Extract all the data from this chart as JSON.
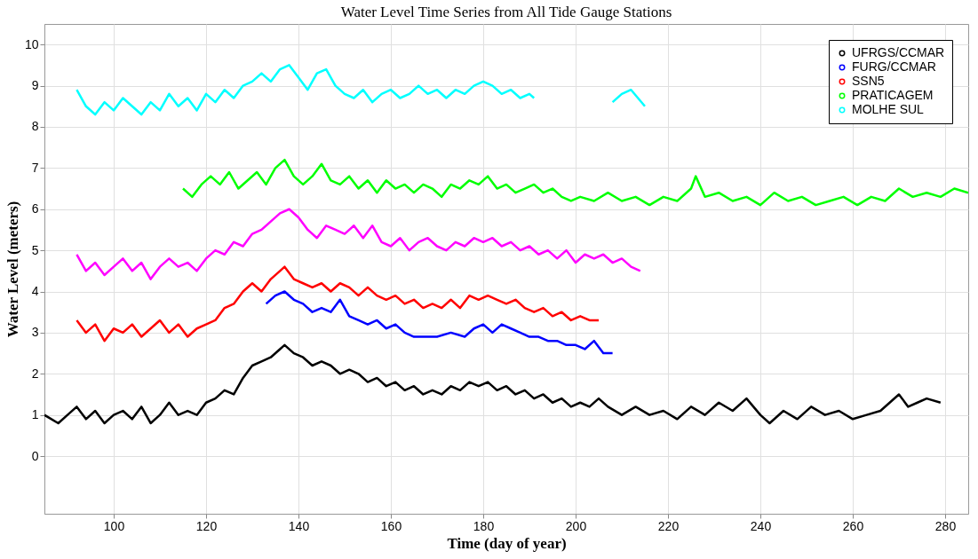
{
  "chart_data": {
    "type": "line",
    "title": "Water Level Time Series from All Tide Gauge Stations",
    "xlabel": "Time (day of year)",
    "ylabel": "Water Level (meters)",
    "xlim": [
      85,
      285
    ],
    "xticks": [
      100,
      120,
      140,
      160,
      180,
      200,
      220,
      240,
      260,
      280
    ],
    "ylim": [
      -1.4,
      10.5
    ],
    "yticks": [
      0,
      1,
      2,
      3,
      4,
      5,
      6,
      7,
      8,
      9,
      10
    ],
    "grid": true,
    "legend": "top right",
    "line_style": "solid",
    "series": [
      {
        "name": "UFRGS/CCMAR",
        "color": "#000000",
        "x": [
          85,
          88,
          90,
          92,
          94,
          96,
          98,
          100,
          102,
          104,
          106,
          108,
          110,
          112,
          114,
          116,
          118,
          120,
          122,
          124,
          126,
          128,
          130,
          132,
          134,
          136,
          137,
          139,
          141,
          143,
          145,
          147,
          149,
          151,
          153,
          155,
          157,
          159,
          161,
          163,
          165,
          167,
          169,
          171,
          173,
          175,
          177,
          179,
          181,
          183,
          185,
          187,
          189,
          191,
          193,
          195,
          197,
          199,
          201,
          203,
          205,
          207,
          210,
          213,
          216,
          219,
          222,
          225,
          228,
          231,
          234,
          237,
          240,
          242,
          245,
          248,
          251,
          254,
          257,
          260,
          263,
          266,
          268,
          270,
          272,
          274,
          276,
          279
        ],
        "values": [
          1.0,
          0.8,
          1.0,
          1.2,
          0.9,
          1.1,
          0.8,
          1.0,
          1.1,
          0.9,
          1.2,
          0.8,
          1.0,
          1.3,
          1.0,
          1.1,
          1.0,
          1.3,
          1.4,
          1.6,
          1.5,
          1.9,
          2.2,
          2.3,
          2.4,
          2.6,
          2.7,
          2.5,
          2.4,
          2.2,
          2.3,
          2.2,
          2.0,
          2.1,
          2.0,
          1.8,
          1.9,
          1.7,
          1.8,
          1.6,
          1.7,
          1.5,
          1.6,
          1.5,
          1.7,
          1.6,
          1.8,
          1.7,
          1.8,
          1.6,
          1.7,
          1.5,
          1.6,
          1.4,
          1.5,
          1.3,
          1.4,
          1.2,
          1.3,
          1.2,
          1.4,
          1.2,
          1.0,
          1.2,
          1.0,
          1.1,
          0.9,
          1.2,
          1.0,
          1.3,
          1.1,
          1.4,
          1.0,
          0.8,
          1.1,
          0.9,
          1.2,
          1.0,
          1.1,
          0.9,
          1.0,
          1.1,
          1.3,
          1.5,
          1.2,
          1.3,
          1.4,
          1.3
        ]
      },
      {
        "name": "FURG/CCMAR",
        "color": "#0000ff",
        "x": [
          133,
          135,
          137,
          139,
          141,
          143,
          145,
          147,
          149,
          151,
          153,
          155,
          157,
          159,
          161,
          163,
          165,
          167,
          170,
          173,
          176,
          178,
          180,
          182,
          184,
          186,
          188,
          190,
          192,
          194,
          196,
          198,
          200,
          202,
          204,
          206,
          208
        ],
        "values": [
          3.7,
          3.9,
          4.0,
          3.8,
          3.7,
          3.5,
          3.6,
          3.5,
          3.8,
          3.4,
          3.3,
          3.2,
          3.3,
          3.1,
          3.2,
          3.0,
          2.9,
          2.9,
          2.9,
          3.0,
          2.9,
          3.1,
          3.2,
          3.0,
          3.2,
          3.1,
          3.0,
          2.9,
          2.9,
          2.8,
          2.8,
          2.7,
          2.7,
          2.6,
          2.8,
          2.5,
          2.5
        ]
      },
      {
        "name": "SSN5",
        "color": "#ff0000",
        "x": [
          92,
          94,
          96,
          98,
          100,
          102,
          104,
          106,
          108,
          110,
          112,
          114,
          116,
          118,
          120,
          122,
          124,
          126,
          128,
          130,
          132,
          134,
          136,
          137,
          139,
          141,
          143,
          145,
          147,
          149,
          151,
          153,
          155,
          157,
          159,
          161,
          163,
          165,
          167,
          169,
          171,
          173,
          175,
          177,
          179,
          181,
          183,
          185,
          187,
          189,
          191,
          193,
          195,
          197,
          199,
          201,
          203,
          205
        ],
        "values": [
          3.3,
          3.0,
          3.2,
          2.8,
          3.1,
          3.0,
          3.2,
          2.9,
          3.1,
          3.3,
          3.0,
          3.2,
          2.9,
          3.1,
          3.2,
          3.3,
          3.6,
          3.7,
          4.0,
          4.2,
          4.0,
          4.3,
          4.5,
          4.6,
          4.3,
          4.2,
          4.1,
          4.2,
          4.0,
          4.2,
          4.1,
          3.9,
          4.1,
          3.9,
          3.8,
          3.9,
          3.7,
          3.8,
          3.6,
          3.7,
          3.6,
          3.8,
          3.6,
          3.9,
          3.8,
          3.9,
          3.8,
          3.7,
          3.8,
          3.6,
          3.5,
          3.6,
          3.4,
          3.5,
          3.3,
          3.4,
          3.3,
          3.3
        ]
      },
      {
        "color": "#ff00ff",
        "x": [
          92,
          94,
          96,
          98,
          100,
          102,
          104,
          106,
          108,
          110,
          112,
          114,
          116,
          118,
          120,
          122,
          124,
          126,
          128,
          130,
          132,
          134,
          136,
          138,
          140,
          142,
          144,
          146,
          148,
          150,
          152,
          154,
          156,
          158,
          160,
          162,
          164,
          166,
          168,
          170,
          172,
          174,
          176,
          178,
          180,
          182,
          184,
          186,
          188,
          190,
          192,
          194,
          196,
          198,
          200,
          202,
          204,
          206,
          208,
          210,
          212,
          214
        ],
        "values": [
          4.9,
          4.5,
          4.7,
          4.4,
          4.6,
          4.8,
          4.5,
          4.7,
          4.3,
          4.6,
          4.8,
          4.6,
          4.7,
          4.5,
          4.8,
          5.0,
          4.9,
          5.2,
          5.1,
          5.4,
          5.5,
          5.7,
          5.9,
          6.0,
          5.8,
          5.5,
          5.3,
          5.6,
          5.5,
          5.4,
          5.6,
          5.3,
          5.6,
          5.2,
          5.1,
          5.3,
          5.0,
          5.2,
          5.3,
          5.1,
          5.0,
          5.2,
          5.1,
          5.3,
          5.2,
          5.3,
          5.1,
          5.2,
          5.0,
          5.1,
          4.9,
          5.0,
          4.8,
          5.0,
          4.7,
          4.9,
          4.8,
          4.9,
          4.7,
          4.8,
          4.6,
          4.5
        ]
      },
      {
        "name": "PRATICAGEM",
        "color": "#00ff00",
        "x": [
          115,
          117,
          119,
          121,
          123,
          125,
          127,
          129,
          131,
          133,
          135,
          137,
          139,
          141,
          143,
          145,
          147,
          149,
          151,
          153,
          155,
          157,
          159,
          161,
          163,
          165,
          167,
          169,
          171,
          173,
          175,
          177,
          179,
          181,
          183,
          185,
          187,
          189,
          191,
          193,
          195,
          197,
          199,
          201,
          204,
          207,
          210,
          213,
          216,
          219,
          222,
          225,
          226,
          228,
          231,
          234,
          237,
          240,
          243,
          246,
          249,
          252,
          255,
          258,
          261,
          264,
          267,
          270,
          273,
          276,
          279,
          282,
          285
        ],
        "values": [
          6.5,
          6.3,
          6.6,
          6.8,
          6.6,
          6.9,
          6.5,
          6.7,
          6.9,
          6.6,
          7.0,
          7.2,
          6.8,
          6.6,
          6.8,
          7.1,
          6.7,
          6.6,
          6.8,
          6.5,
          6.7,
          6.4,
          6.7,
          6.5,
          6.6,
          6.4,
          6.6,
          6.5,
          6.3,
          6.6,
          6.5,
          6.7,
          6.6,
          6.8,
          6.5,
          6.6,
          6.4,
          6.5,
          6.6,
          6.4,
          6.5,
          6.3,
          6.2,
          6.3,
          6.2,
          6.4,
          6.2,
          6.3,
          6.1,
          6.3,
          6.2,
          6.5,
          6.8,
          6.3,
          6.4,
          6.2,
          6.3,
          6.1,
          6.4,
          6.2,
          6.3,
          6.1,
          6.2,
          6.3,
          6.1,
          6.3,
          6.2,
          6.5,
          6.3,
          6.4,
          6.3,
          6.5,
          6.4
        ]
      },
      {
        "name": "MOLHE SUL",
        "color": "#00ffff",
        "x": [
          92,
          94,
          96,
          98,
          100,
          102,
          104,
          106,
          108,
          110,
          112,
          114,
          116,
          118,
          120,
          122,
          124,
          126,
          128,
          130,
          132,
          134,
          136,
          138,
          140,
          142,
          144,
          146,
          148,
          150,
          152,
          154,
          156,
          158,
          160,
          162,
          164,
          166,
          168,
          170,
          172,
          174,
          176,
          178,
          180,
          182,
          184,
          186,
          188,
          190,
          191,
          200,
          208,
          210,
          212,
          215
        ],
        "values": [
          8.9,
          8.5,
          8.3,
          8.6,
          8.4,
          8.7,
          8.5,
          8.3,
          8.6,
          8.4,
          8.8,
          8.5,
          8.7,
          8.4,
          8.8,
          8.6,
          8.9,
          8.7,
          9.0,
          9.1,
          9.3,
          9.1,
          9.4,
          9.5,
          9.2,
          8.9,
          9.3,
          9.4,
          9.0,
          8.8,
          8.7,
          8.9,
          8.6,
          8.8,
          8.9,
          8.7,
          8.8,
          9.0,
          8.8,
          8.9,
          8.7,
          8.9,
          8.8,
          9.0,
          9.1,
          9.0,
          8.8,
          8.9,
          8.7,
          8.8,
          8.7,
          null,
          8.6,
          8.8,
          8.9,
          8.5
        ]
      }
    ]
  }
}
